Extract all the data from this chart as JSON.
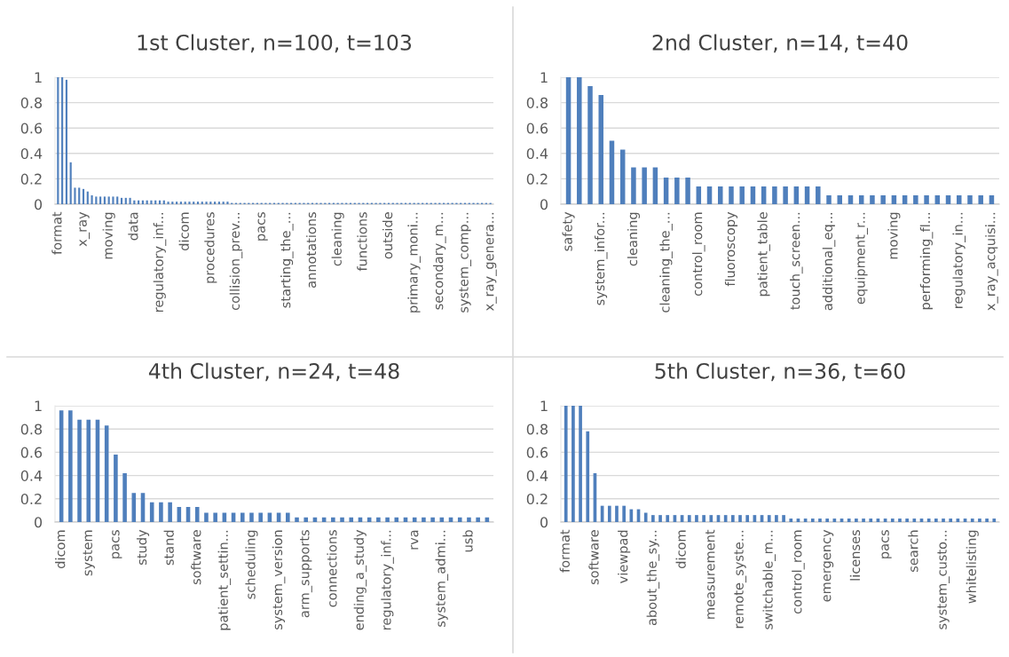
{
  "chart_data": [
    {
      "type": "bar",
      "title": "1st Cluster, n=100, t=103",
      "color": "#4f7fbc",
      "ylim": [
        0,
        1
      ],
      "yticks": [
        0,
        0.2,
        0.4,
        0.6,
        0.8,
        1
      ],
      "grid": "y",
      "categories": [
        "format",
        null,
        null,
        null,
        null,
        null,
        "x_ray",
        null,
        null,
        null,
        null,
        null,
        "moving",
        null,
        null,
        null,
        null,
        null,
        "data",
        null,
        null,
        null,
        null,
        null,
        "regulatory_inf...",
        null,
        null,
        null,
        null,
        null,
        "dicom",
        null,
        null,
        null,
        null,
        null,
        "procedures",
        null,
        null,
        null,
        null,
        null,
        "collision_prev...",
        null,
        null,
        null,
        null,
        null,
        "pacs",
        null,
        null,
        null,
        null,
        null,
        "starting_the_...",
        null,
        null,
        null,
        null,
        null,
        "annotations",
        null,
        null,
        null,
        null,
        null,
        "cleaning",
        null,
        null,
        null,
        null,
        null,
        "functions",
        null,
        null,
        null,
        null,
        null,
        "outside",
        null,
        null,
        null,
        null,
        null,
        "primary_moni...",
        null,
        null,
        null,
        null,
        null,
        "secondary_m...",
        null,
        null,
        null,
        null,
        null,
        "system_comp...",
        null,
        null,
        null,
        null,
        null,
        "x_ray_genera..."
      ],
      "values": [
        1,
        1,
        0.98,
        0.33,
        0.13,
        0.13,
        0.12,
        0.1,
        0.07,
        0.06,
        0.06,
        0.06,
        0.06,
        0.06,
        0.06,
        0.05,
        0.05,
        0.05,
        0.03,
        0.03,
        0.03,
        0.03,
        0.03,
        0.03,
        0.03,
        0.03,
        0.02,
        0.02,
        0.02,
        0.02,
        0.02,
        0.02,
        0.02,
        0.02,
        0.02,
        0.02,
        0.02,
        0.02,
        0.02,
        0.02,
        0.02,
        0.01,
        0.01,
        0.01,
        0.01,
        0.01,
        0.01,
        0.01,
        0.01,
        0.01,
        0.01,
        0.01,
        0.01,
        0.01,
        0.01,
        0.01,
        0.01,
        0.01,
        0.01,
        0.01,
        0.01,
        0.01,
        0.01,
        0.01,
        0.01,
        0.01,
        0.01,
        0.01,
        0.01,
        0.01,
        0.01,
        0.01,
        0.01,
        0.01,
        0.01,
        0.01,
        0.01,
        0.01,
        0.01,
        0.01,
        0.01,
        0.01,
        0.01,
        0.01,
        0.01,
        0.01,
        0.01,
        0.01,
        0.01,
        0.01,
        0.01,
        0.01,
        0.01,
        0.01,
        0.01,
        0.01,
        0.01,
        0.01,
        0.01,
        0.01,
        0.01,
        0.01,
        0.01
      ]
    },
    {
      "type": "bar",
      "title": "2nd Cluster, n=14, t=40",
      "color": "#4f7fbc",
      "ylim": [
        0,
        1
      ],
      "yticks": [
        0,
        0.2,
        0.4,
        0.6,
        0.8,
        1
      ],
      "grid": "y",
      "categories": [
        "safety",
        null,
        null,
        "system_infor...",
        null,
        null,
        "cleaning",
        null,
        null,
        "cleaning_the_...",
        null,
        null,
        "control_room",
        null,
        null,
        "fluoroscopy",
        null,
        null,
        "patient_table",
        null,
        null,
        "touch_screen...",
        null,
        null,
        "additional_eq...",
        null,
        null,
        "equipment_r...",
        null,
        null,
        "moving",
        null,
        null,
        "performing_fl...",
        null,
        null,
        "regulatory_in...",
        null,
        null,
        "x_ray_acquisi..."
      ],
      "values": [
        1,
        1,
        0.93,
        0.86,
        0.5,
        0.43,
        0.29,
        0.29,
        0.29,
        0.21,
        0.21,
        0.21,
        0.14,
        0.14,
        0.14,
        0.14,
        0.14,
        0.14,
        0.14,
        0.14,
        0.14,
        0.14,
        0.14,
        0.14,
        0.07,
        0.07,
        0.07,
        0.07,
        0.07,
        0.07,
        0.07,
        0.07,
        0.07,
        0.07,
        0.07,
        0.07,
        0.07,
        0.07,
        0.07,
        0.07
      ]
    },
    {
      "type": "bar",
      "title": "4th Cluster, n=24, t=48",
      "color": "#4f7fbc",
      "ylim": [
        0,
        1
      ],
      "yticks": [
        0,
        0.2,
        0.4,
        0.6,
        0.8,
        1
      ],
      "grid": "y",
      "categories": [
        "dicom",
        null,
        null,
        "system",
        null,
        null,
        "pacs",
        null,
        null,
        "study",
        null,
        null,
        "stand",
        null,
        null,
        "software",
        null,
        null,
        "patient_settin...",
        null,
        null,
        "scheduling",
        null,
        null,
        "system_version",
        null,
        null,
        "arm_supports",
        null,
        null,
        "connections",
        null,
        null,
        "ending_a_study",
        null,
        null,
        "regulatory_inf...",
        null,
        null,
        "rva",
        null,
        null,
        "system_admi...",
        null,
        null,
        "usb",
        null,
        null
      ],
      "values": [
        0.96,
        0.96,
        0.88,
        0.88,
        0.88,
        0.83,
        0.58,
        0.42,
        0.25,
        0.25,
        0.17,
        0.17,
        0.17,
        0.13,
        0.13,
        0.13,
        0.08,
        0.08,
        0.08,
        0.08,
        0.08,
        0.08,
        0.08,
        0.08,
        0.08,
        0.08,
        0.04,
        0.04,
        0.04,
        0.04,
        0.04,
        0.04,
        0.04,
        0.04,
        0.04,
        0.04,
        0.04,
        0.04,
        0.04,
        0.04,
        0.04,
        0.04,
        0.04,
        0.04,
        0.04,
        0.04,
        0.04,
        0.04
      ]
    },
    {
      "type": "bar",
      "title": "5th Cluster, n=36, t=60",
      "color": "#4f7fbc",
      "ylim": [
        0,
        1
      ],
      "yticks": [
        0,
        0.2,
        0.4,
        0.6,
        0.8,
        1
      ],
      "grid": "y",
      "categories": [
        "format",
        null,
        null,
        null,
        "software",
        null,
        null,
        null,
        "viewpad",
        null,
        null,
        null,
        "about_the_sy...",
        null,
        null,
        null,
        "dicom",
        null,
        null,
        null,
        "measurement",
        null,
        null,
        null,
        "remote_syste...",
        null,
        null,
        null,
        "switchable_m...",
        null,
        null,
        null,
        "control_room",
        null,
        null,
        null,
        "emergency",
        null,
        null,
        null,
        "licenses",
        null,
        null,
        null,
        "pacs",
        null,
        null,
        null,
        "search",
        null,
        null,
        null,
        "system_custo...",
        null,
        null,
        null,
        "whitelisting",
        null,
        null,
        null
      ],
      "values": [
        1,
        1,
        1,
        0.78,
        0.42,
        0.14,
        0.14,
        0.14,
        0.14,
        0.11,
        0.11,
        0.08,
        0.06,
        0.06,
        0.06,
        0.06,
        0.06,
        0.06,
        0.06,
        0.06,
        0.06,
        0.06,
        0.06,
        0.06,
        0.06,
        0.06,
        0.06,
        0.06,
        0.06,
        0.06,
        0.06,
        0.03,
        0.03,
        0.03,
        0.03,
        0.03,
        0.03,
        0.03,
        0.03,
        0.03,
        0.03,
        0.03,
        0.03,
        0.03,
        0.03,
        0.03,
        0.03,
        0.03,
        0.03,
        0.03,
        0.03,
        0.03,
        0.03,
        0.03,
        0.03,
        0.03,
        0.03,
        0.03,
        0.03,
        0.03
      ]
    }
  ]
}
